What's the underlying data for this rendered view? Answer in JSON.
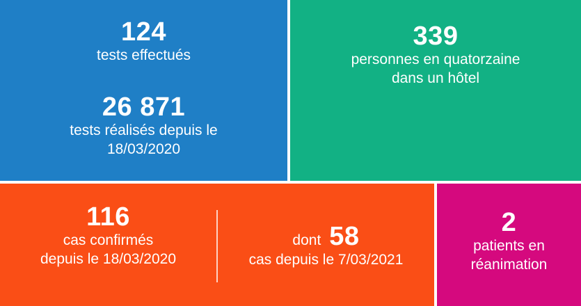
{
  "tiles": {
    "tests": {
      "daily_value": "124",
      "daily_label": "tests effectués",
      "total_value": "26 871",
      "total_label_line1": "tests réalisés depuis le",
      "total_label_line2": "18/03/2020",
      "color": "#1f7fc6"
    },
    "quarantine": {
      "value": "339",
      "label_line1": "personnes en quatorzaine",
      "label_line2": "dans un hôtel",
      "color": "#12b184"
    },
    "cases": {
      "confirmed_value": "116",
      "confirmed_label_line1": "cas confirmés",
      "confirmed_label_line2": "depuis le 18/03/2020",
      "recent_prefix": "dont",
      "recent_value": "58",
      "recent_label": "cas depuis le 7/03/2021",
      "color": "#fa4e16"
    },
    "icu": {
      "value": "2",
      "label_line1": "patients en",
      "label_line2": "réanimation",
      "color": "#d5097e"
    }
  }
}
